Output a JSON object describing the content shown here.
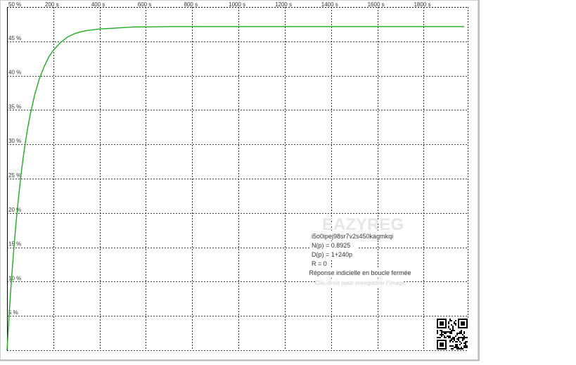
{
  "chart_data": {
    "type": "line",
    "title": "",
    "xlabel": "",
    "ylabel": "",
    "xlim": [
      0,
      1990
    ],
    "ylim": [
      0,
      50
    ],
    "x_unit": "s",
    "y_unit": "%",
    "grid": true,
    "x_ticks": [
      {
        "value": 200,
        "label": "200 s"
      },
      {
        "value": 400,
        "label": "400 s"
      },
      {
        "value": 600,
        "label": "600 s"
      },
      {
        "value": 800,
        "label": "800 s"
      },
      {
        "value": 1000,
        "label": "1000 s"
      },
      {
        "value": 1200,
        "label": "1200 s"
      },
      {
        "value": 1400,
        "label": "1400 s"
      },
      {
        "value": 1600,
        "label": "1600 s"
      },
      {
        "value": 1800,
        "label": "1800 s"
      }
    ],
    "y_ticks": [
      {
        "value": 50,
        "label": "50 %"
      },
      {
        "value": 45,
        "label": "45 %"
      },
      {
        "value": 40,
        "label": "40 %"
      },
      {
        "value": 35,
        "label": "35 %"
      },
      {
        "value": 30,
        "label": "30 %"
      },
      {
        "value": 25,
        "label": "25 %"
      },
      {
        "value": 20,
        "label": "20 %"
      },
      {
        "value": 15,
        "label": "15 %"
      },
      {
        "value": 10,
        "label": "10 %"
      },
      {
        "value": 5,
        "label": "5 %"
      }
    ],
    "series": [
      {
        "color": "#22aa22",
        "x": [
          0,
          10,
          20,
          30,
          40,
          50,
          60,
          70,
          80,
          90,
          100,
          120,
          140,
          160,
          180,
          200,
          230,
          260,
          290,
          320,
          350,
          400,
          450,
          500,
          550,
          600,
          700,
          800,
          900,
          1000,
          1200,
          1400,
          1600,
          1800,
          1975
        ],
        "y": [
          0,
          5.7,
          10.7,
          15.1,
          19.0,
          22.4,
          25.4,
          28.1,
          30.4,
          32.5,
          34.3,
          37.3,
          39.6,
          41.3,
          42.7,
          43.7,
          44.8,
          45.6,
          46.1,
          46.4,
          46.6,
          46.8,
          46.9,
          47.0,
          47.1,
          47.1,
          47.15,
          47.15,
          47.15,
          47.15,
          47.15,
          47.15,
          47.15,
          47.15,
          47.15
        ]
      }
    ]
  },
  "legend_box": {
    "watermark": "EAZYREG",
    "id": "i5o0ipej98sr7v2s450kagmkqi",
    "numerator": "N(p) = 0.8925",
    "denominator": "D(p) = 1+240p",
    "r": "R = 0",
    "description": "Réponse indicielle en boucle fermée",
    "hint": "Clic-droit pour enregistrer l'image"
  },
  "colors": {
    "curve": "#22aa22",
    "grid": "#000000",
    "border": "#cccccc"
  },
  "icons": {
    "qr": "qr-code-icon"
  }
}
